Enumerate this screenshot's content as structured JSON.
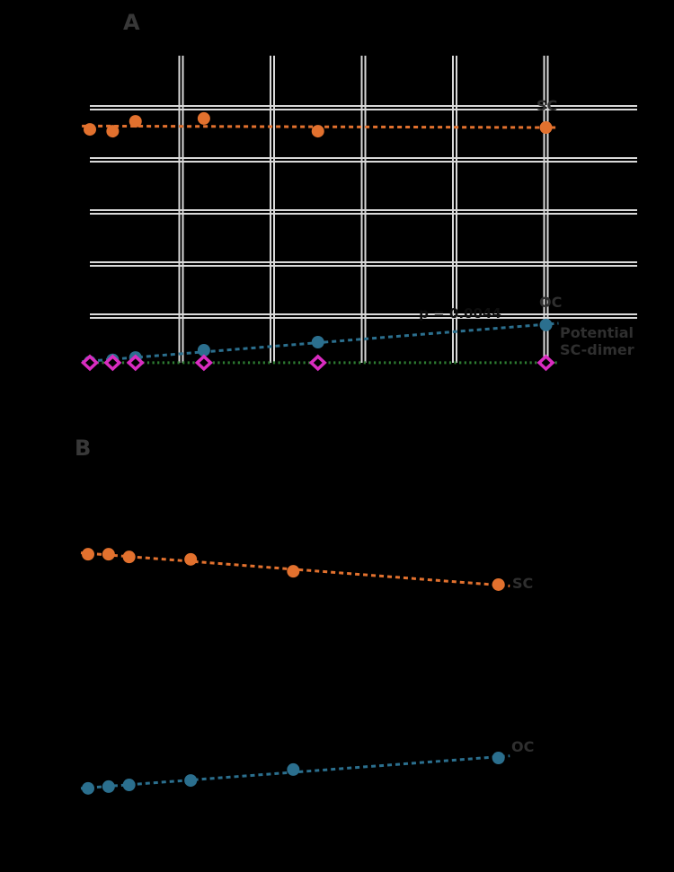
{
  "figure": {
    "background_color": "#000000",
    "panels": {
      "a": {
        "letter": "A"
      },
      "b": {
        "letter": "B"
      }
    },
    "annotation": {
      "text": "p = 0.0044"
    }
  },
  "colors": {
    "grid": "#d9d9d9",
    "sc_orange": "#e2712e",
    "oc_blue": "#2b6f8e",
    "dimer_magenta": "#d92cc0",
    "dimer_trend_green": "#2e7d32",
    "label_gray": "#2f2f2f"
  },
  "chart_data": [
    {
      "id": "A",
      "type": "scatter",
      "title": "",
      "xlabel": "",
      "ylabel": "",
      "x": [
        0,
        1,
        2,
        5,
        10,
        20
      ],
      "xlim": [
        0,
        24
      ],
      "ylim": [
        0,
        120
      ],
      "grid": {
        "enabled": true,
        "x_ticks": [
          4,
          8,
          12,
          16,
          20
        ],
        "y_ticks": [
          20,
          40,
          60,
          80,
          100
        ],
        "color": "#d9d9d9",
        "style": "double-line"
      },
      "legend_position": "line-ends",
      "series": [
        {
          "name": "SC",
          "label": "SC",
          "marker": "circle",
          "color": "#e2712e",
          "trend_color": "#e2712e",
          "trend_style": "dashed",
          "values": [
            91.7,
            91.0,
            94.8,
            95.9,
            91.0,
            92.4
          ]
        },
        {
          "name": "OC",
          "label": "OC",
          "marker": "circle",
          "color": "#2b6f8e",
          "trend_color": "#2b6f8e",
          "trend_style": "dashed",
          "values": [
            2.4,
            3.2,
            4.1,
            6.9,
            10.0,
            16.6
          ]
        },
        {
          "name": "Potential SC-dimer",
          "label": "Potential SC-dimer",
          "marker": "diamond",
          "color": "#d92cc0",
          "trend_color": "#2e7d32",
          "trend_style": "dotted",
          "values": [
            2.1,
            2.1,
            2.1,
            2.1,
            2.1,
            2.1
          ]
        }
      ]
    },
    {
      "id": "B",
      "type": "scatter",
      "title": "",
      "xlabel": "",
      "ylabel": "",
      "x": [
        0,
        1,
        2,
        5,
        10,
        20
      ],
      "xlim": [
        0,
        24
      ],
      "ylim": [
        0,
        100
      ],
      "grid": {
        "enabled": false
      },
      "legend_position": "line-ends",
      "series": [
        {
          "name": "SC",
          "label": "SC",
          "marker": "circle",
          "color": "#e2712e",
          "trend_color": "#e2712e",
          "trend_style": "dashed",
          "values": [
            79.7,
            79.7,
            78.9,
            78.2,
            74.7,
            70.8
          ]
        },
        {
          "name": "OC",
          "label": "OC",
          "marker": "circle",
          "color": "#2b6f8e",
          "trend_color": "#2b6f8e",
          "trend_style": "dashed",
          "values": [
            11.1,
            11.6,
            12.1,
            13.4,
            16.6,
            20.0
          ]
        }
      ]
    }
  ]
}
